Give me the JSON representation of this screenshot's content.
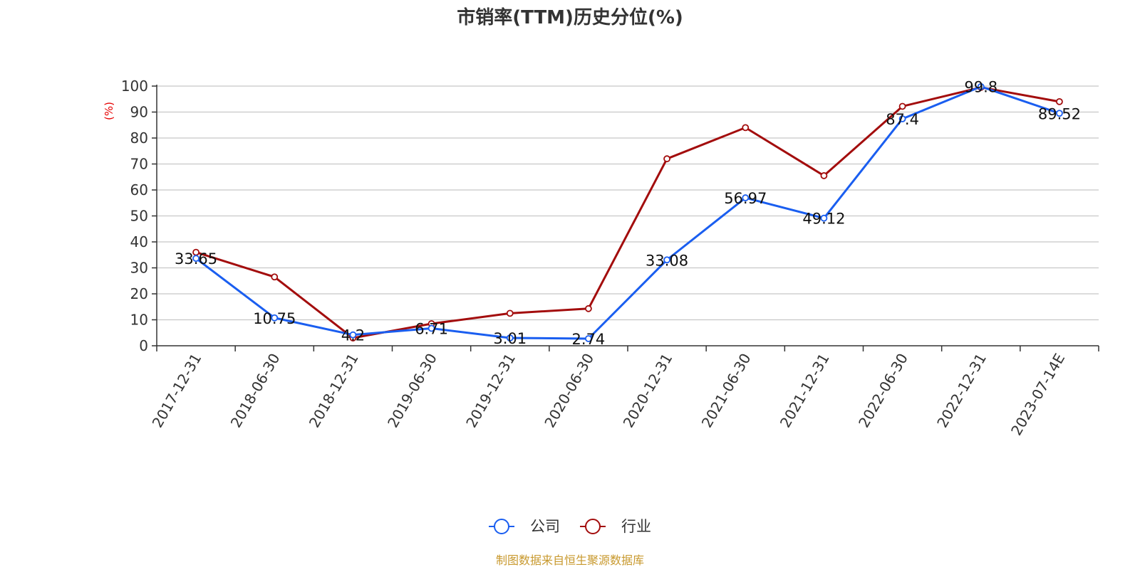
{
  "chart_data": {
    "type": "line",
    "title": "市销率(TTM)历史分位(%)",
    "ylabel": "(%)",
    "xlabel": "",
    "ylim": [
      0,
      100
    ],
    "yticks": [
      0,
      10,
      20,
      30,
      40,
      50,
      60,
      70,
      80,
      90,
      100
    ],
    "categories": [
      "2017-12-31",
      "2018-06-30",
      "2018-12-31",
      "2019-06-30",
      "2019-12-31",
      "2020-06-30",
      "2020-12-31",
      "2021-06-30",
      "2021-12-31",
      "2022-06-30",
      "2022-12-31",
      "2023-07-14E"
    ],
    "series": [
      {
        "name": "公司",
        "color": "#1a5ef0",
        "values": [
          33.65,
          10.75,
          4.2,
          6.71,
          3.01,
          2.74,
          33.08,
          56.97,
          49.12,
          87.4,
          99.8,
          89.52
        ],
        "labels": [
          "33.65",
          "10.75",
          "4.2",
          "6.71",
          "3.01",
          "2.74",
          "33.08",
          "56.97",
          "49.12",
          "87.4",
          "99.8",
          "89.52"
        ]
      },
      {
        "name": "行业",
        "color": "#a30d0d",
        "values": [
          36,
          26.5,
          3,
          8.5,
          12.5,
          14.3,
          72,
          84,
          65.5,
          92.2,
          99.5,
          94
        ]
      }
    ],
    "grid": true,
    "legend_position": "bottom-center",
    "source": "制图数据来自恒生聚源数据库"
  },
  "colors": {
    "axis": "#333333",
    "grid": "#c8c8c8",
    "ylabel": "#e60000",
    "source": "#c8992e"
  }
}
